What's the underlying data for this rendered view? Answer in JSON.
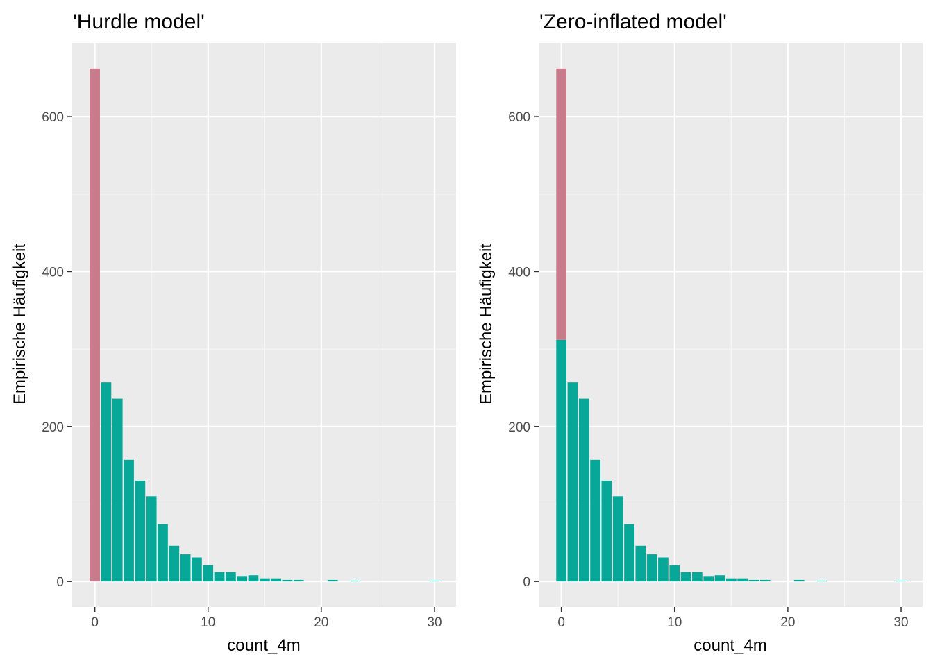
{
  "colors": {
    "panel_bg": "#ebebeb",
    "grid_major": "#ffffff",
    "grid_minor": "#f7f7f7",
    "tick": "#333333",
    "zero_part": "#c77b8b",
    "count_part": "#08a898"
  },
  "chart_data": [
    {
      "type": "bar",
      "title": "'Hurdle model'",
      "xlabel": "count_4m",
      "ylabel": "Empirische Häufigkeit",
      "xlim": [
        -2,
        31.9
      ],
      "ylim": [
        -33,
        695
      ],
      "x_ticks": [
        0,
        10,
        20,
        30
      ],
      "x_tick_labels": [
        "0",
        "10",
        "20",
        "30"
      ],
      "y_ticks": [
        0,
        200,
        400,
        600
      ],
      "y_tick_labels": [
        "0",
        "200",
        "400",
        "600"
      ],
      "grid": true,
      "stacked": true,
      "x": [
        0,
        1,
        2,
        3,
        4,
        5,
        6,
        7,
        8,
        9,
        10,
        11,
        12,
        13,
        14,
        15,
        16,
        17,
        18,
        21,
        23,
        30
      ],
      "series": [
        {
          "color_key": "zero_part",
          "values": [
            662,
            0,
            0,
            0,
            0,
            0,
            0,
            0,
            0,
            0,
            0,
            0,
            0,
            0,
            0,
            0,
            0,
            0,
            0,
            0,
            0,
            0
          ]
        },
        {
          "color_key": "count_part",
          "values": [
            0,
            257,
            236,
            157,
            130,
            110,
            74,
            46,
            35,
            31,
            21,
            12,
            12,
            7,
            8,
            4,
            4,
            2,
            2,
            2,
            1,
            1
          ]
        }
      ]
    },
    {
      "type": "bar",
      "title": "'Zero-inflated model'",
      "xlabel": "count_4m",
      "ylabel": "Empirische Häufigkeit",
      "xlim": [
        -2,
        31.9
      ],
      "ylim": [
        -33,
        695
      ],
      "x_ticks": [
        0,
        10,
        20,
        30
      ],
      "x_tick_labels": [
        "0",
        "10",
        "20",
        "30"
      ],
      "y_ticks": [
        0,
        200,
        400,
        600
      ],
      "y_tick_labels": [
        "0",
        "200",
        "400",
        "600"
      ],
      "grid": true,
      "stacked": true,
      "x": [
        0,
        1,
        2,
        3,
        4,
        5,
        6,
        7,
        8,
        9,
        10,
        11,
        12,
        13,
        14,
        15,
        16,
        17,
        18,
        21,
        23,
        30
      ],
      "series": [
        {
          "color_key": "count_part",
          "values": [
            312,
            257,
            236,
            157,
            130,
            110,
            74,
            46,
            35,
            31,
            21,
            12,
            12,
            7,
            8,
            4,
            4,
            2,
            2,
            2,
            1,
            1
          ]
        },
        {
          "color_key": "zero_part",
          "values": [
            350,
            0,
            0,
            0,
            0,
            0,
            0,
            0,
            0,
            0,
            0,
            0,
            0,
            0,
            0,
            0,
            0,
            0,
            0,
            0,
            0,
            0
          ]
        }
      ]
    }
  ]
}
